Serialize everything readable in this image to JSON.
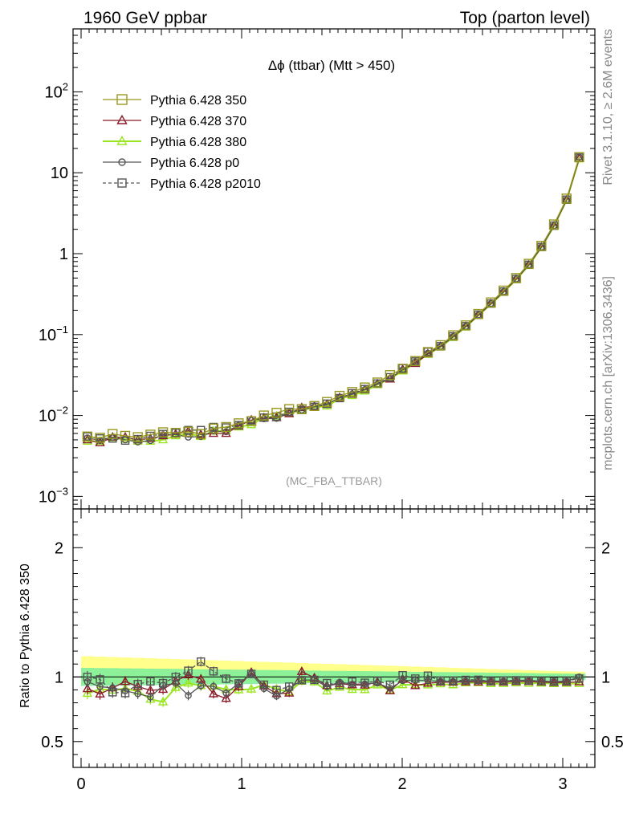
{
  "header": {
    "left": "1960 GeV ppbar",
    "right": "Top (parton level)"
  },
  "side": {
    "top": "Rivet 3.1.10, ≥ 2.6M events",
    "bottom": "mcplots.cern.ch [arXiv:1306.3436]"
  },
  "chart_data": {
    "type": "line",
    "title": "Δϕ (ttbar) (Mtt > 450)",
    "watermark": "(MC_FBA_TTBAR)",
    "xlabel": "",
    "ylabel": "",
    "ratio_ylabel": "Ratio to Pythia 6.428 350",
    "xlim": [
      -0.05,
      3.2
    ],
    "ylim": [
      0.0007,
      600
    ],
    "ratio_ylim": [
      0.3,
      2.3
    ],
    "yscale": "log",
    "grid": false,
    "legend_position": "top-left",
    "x_ticks": [
      "0",
      "1",
      "2",
      "3"
    ],
    "y_ticks": [
      "10^-3",
      "10^-2",
      "10^-1",
      "1",
      "10",
      "10^2"
    ],
    "ratio_ticks": [
      "0.5",
      "1",
      "2"
    ],
    "x": [
      0.0393,
      0.1178,
      0.1963,
      0.2749,
      0.3534,
      0.432,
      0.5105,
      0.589,
      0.6676,
      0.7461,
      0.8247,
      0.9032,
      0.9817,
      1.0603,
      1.1388,
      1.2174,
      1.2959,
      1.3744,
      1.453,
      1.5315,
      1.6101,
      1.6886,
      1.7671,
      1.8457,
      1.9242,
      2.0028,
      2.0813,
      2.1598,
      2.2384,
      2.3169,
      2.3955,
      2.474,
      2.5525,
      2.6311,
      2.7096,
      2.7882,
      2.8667,
      2.9452,
      3.0238,
      3.1023
    ],
    "series": [
      {
        "name": "Pythia 6.428 350",
        "color": "#99991f",
        "marker": "square-open",
        "dash": false,
        "values": [
          0.0055,
          0.0053,
          0.0059,
          0.0056,
          0.0054,
          0.0058,
          0.0062,
          0.0061,
          0.0063,
          0.0059,
          0.0069,
          0.0072,
          0.008,
          0.0085,
          0.01,
          0.0108,
          0.012,
          0.012,
          0.0131,
          0.0147,
          0.0175,
          0.0195,
          0.0222,
          0.0256,
          0.0316,
          0.0378,
          0.0471,
          0.0608,
          0.074,
          0.098,
          0.13,
          0.18,
          0.25,
          0.35,
          0.5,
          0.75,
          1.25,
          2.3,
          4.8,
          15.6
        ]
      },
      {
        "name": "Pythia 6.428 370",
        "color": "#8b1a2a",
        "marker": "triangle-open",
        "dash": false,
        "values": [
          0.005,
          0.0046,
          0.0054,
          0.0054,
          0.005,
          0.0052,
          0.0056,
          0.0059,
          0.0064,
          0.0058,
          0.006,
          0.006,
          0.0074,
          0.0088,
          0.0093,
          0.0094,
          0.0105,
          0.0125,
          0.013,
          0.0137,
          0.0166,
          0.0183,
          0.0208,
          0.0246,
          0.0282,
          0.0371,
          0.0439,
          0.0578,
          0.071,
          0.094,
          0.125,
          0.173,
          0.24,
          0.336,
          0.482,
          0.723,
          1.2,
          2.2,
          4.6,
          15.0
        ]
      },
      {
        "name": "Pythia 6.428 380",
        "color": "#9ae61f",
        "marker": "triangle-open",
        "dash": false,
        "values": [
          0.0048,
          0.0048,
          0.0053,
          0.0051,
          0.0048,
          0.0048,
          0.005,
          0.0056,
          0.006,
          0.0055,
          0.0064,
          0.0065,
          0.0072,
          0.0077,
          0.0094,
          0.0098,
          0.0106,
          0.0116,
          0.0126,
          0.0131,
          0.0161,
          0.0176,
          0.02,
          0.024,
          0.0284,
          0.0355,
          0.0443,
          0.057,
          0.07,
          0.092,
          0.124,
          0.172,
          0.237,
          0.332,
          0.477,
          0.713,
          1.19,
          2.18,
          4.56,
          14.8
        ]
      },
      {
        "name": "Pythia 6.428 p0",
        "color": "#555555",
        "marker": "circle-open",
        "dash": false,
        "values": [
          0.0053,
          0.0049,
          0.0054,
          0.005,
          0.0047,
          0.0049,
          0.0058,
          0.0058,
          0.0054,
          0.0055,
          0.0064,
          0.0063,
          0.0076,
          0.0087,
          0.0091,
          0.0092,
          0.0109,
          0.0117,
          0.0128,
          0.0136,
          0.0168,
          0.0184,
          0.021,
          0.0244,
          0.0288,
          0.0367,
          0.046,
          0.059,
          0.0715,
          0.0945,
          0.126,
          0.175,
          0.242,
          0.339,
          0.487,
          0.73,
          1.21,
          2.22,
          4.64,
          15.6
        ]
      },
      {
        "name": "Pythia 6.428 p2010",
        "color": "#555555",
        "marker": "square-open",
        "dash": true,
        "values": [
          0.0055,
          0.0052,
          0.0052,
          0.0049,
          0.0051,
          0.0056,
          0.0059,
          0.0061,
          0.0066,
          0.0066,
          0.0072,
          0.0071,
          0.0076,
          0.0087,
          0.0094,
          0.0097,
          0.0111,
          0.0117,
          0.0128,
          0.014,
          0.0164,
          0.0188,
          0.0212,
          0.0248,
          0.0297,
          0.0383,
          0.0465,
          0.0614,
          0.0718,
          0.095,
          0.127,
          0.176,
          0.242,
          0.34,
          0.487,
          0.73,
          1.21,
          2.22,
          4.65,
          15.4
        ]
      }
    ]
  }
}
